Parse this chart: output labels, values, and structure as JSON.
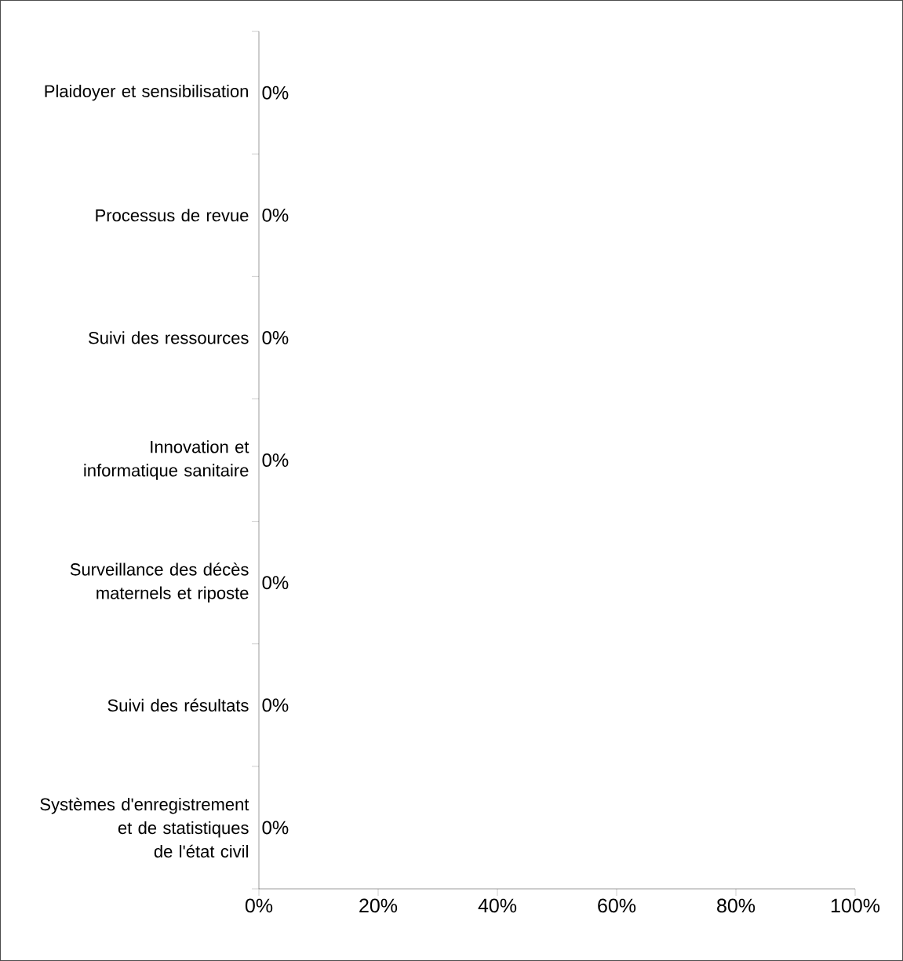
{
  "chart_data": {
    "type": "bar",
    "orientation": "horizontal",
    "categories": [
      "Plaidoyer et sensibilisation",
      "Processus de revue",
      "Suivi des ressources",
      "Innovation et informatique sanitaire",
      "Surveillance des décès maternels et riposte",
      "Suivi des résultats",
      "Systèmes d'enregistrement et de statistiques de l'état civil"
    ],
    "values": [
      0,
      0,
      0,
      0,
      0,
      0,
      0
    ],
    "value_labels": [
      "0%",
      "0%",
      "0%",
      "0%",
      "0%",
      "0%",
      "0%"
    ],
    "xlim": [
      0,
      100
    ],
    "xticks": [
      {
        "value": 0,
        "label": "0%"
      },
      {
        "value": 20,
        "label": "20%"
      },
      {
        "value": 40,
        "label": "40%"
      },
      {
        "value": 60,
        "label": "60%"
      },
      {
        "value": 80,
        "label": "80%"
      },
      {
        "value": 100,
        "label": "100%"
      }
    ]
  }
}
